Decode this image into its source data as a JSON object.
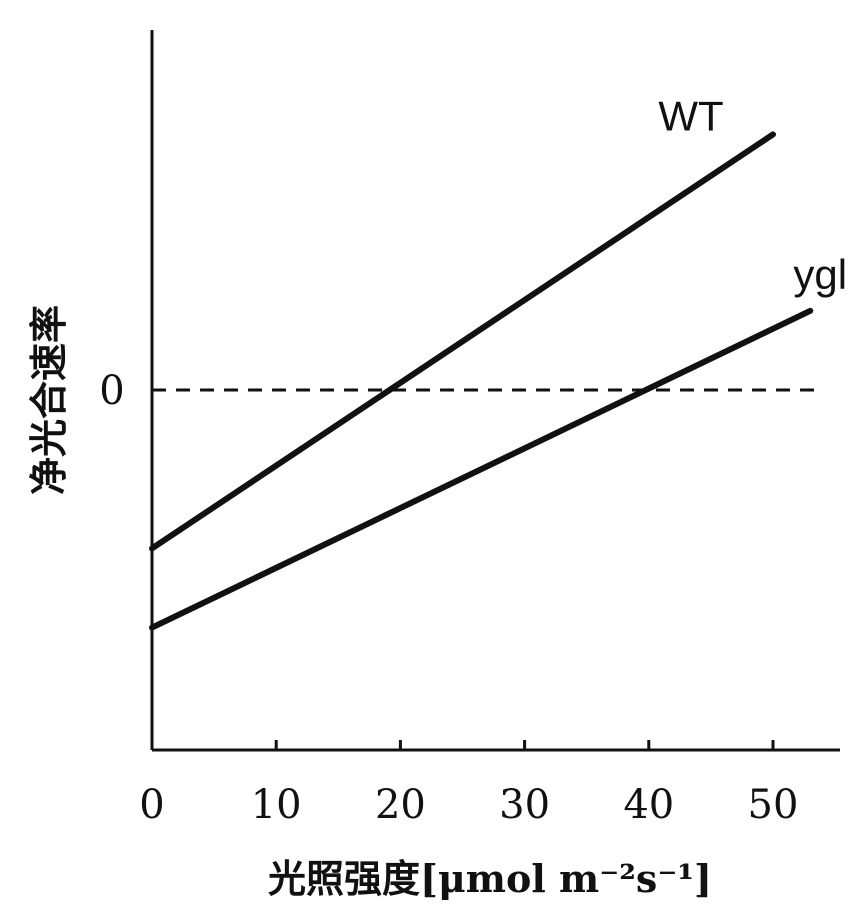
{
  "chart_data": {
    "type": "line",
    "xlabel": "光照强度[μmol m⁻²s⁻¹]",
    "ylabel": "净光合速率",
    "x_ticks": [
      "0",
      "10",
      "20",
      "30",
      "40",
      "50"
    ],
    "xlim": [
      0,
      55
    ],
    "ylim": [
      -1,
      1
    ],
    "zero_label": "0",
    "zero_line": {
      "y": 0,
      "style": "dashed"
    },
    "grid": false,
    "series": [
      {
        "name": "WT",
        "x": [
          0,
          50
        ],
        "y": [
          -0.44,
          0.71
        ],
        "color": "#111111"
      },
      {
        "name": "ygl",
        "x": [
          0,
          53
        ],
        "y": [
          -0.66,
          0.22
        ],
        "color": "#111111"
      }
    ]
  }
}
